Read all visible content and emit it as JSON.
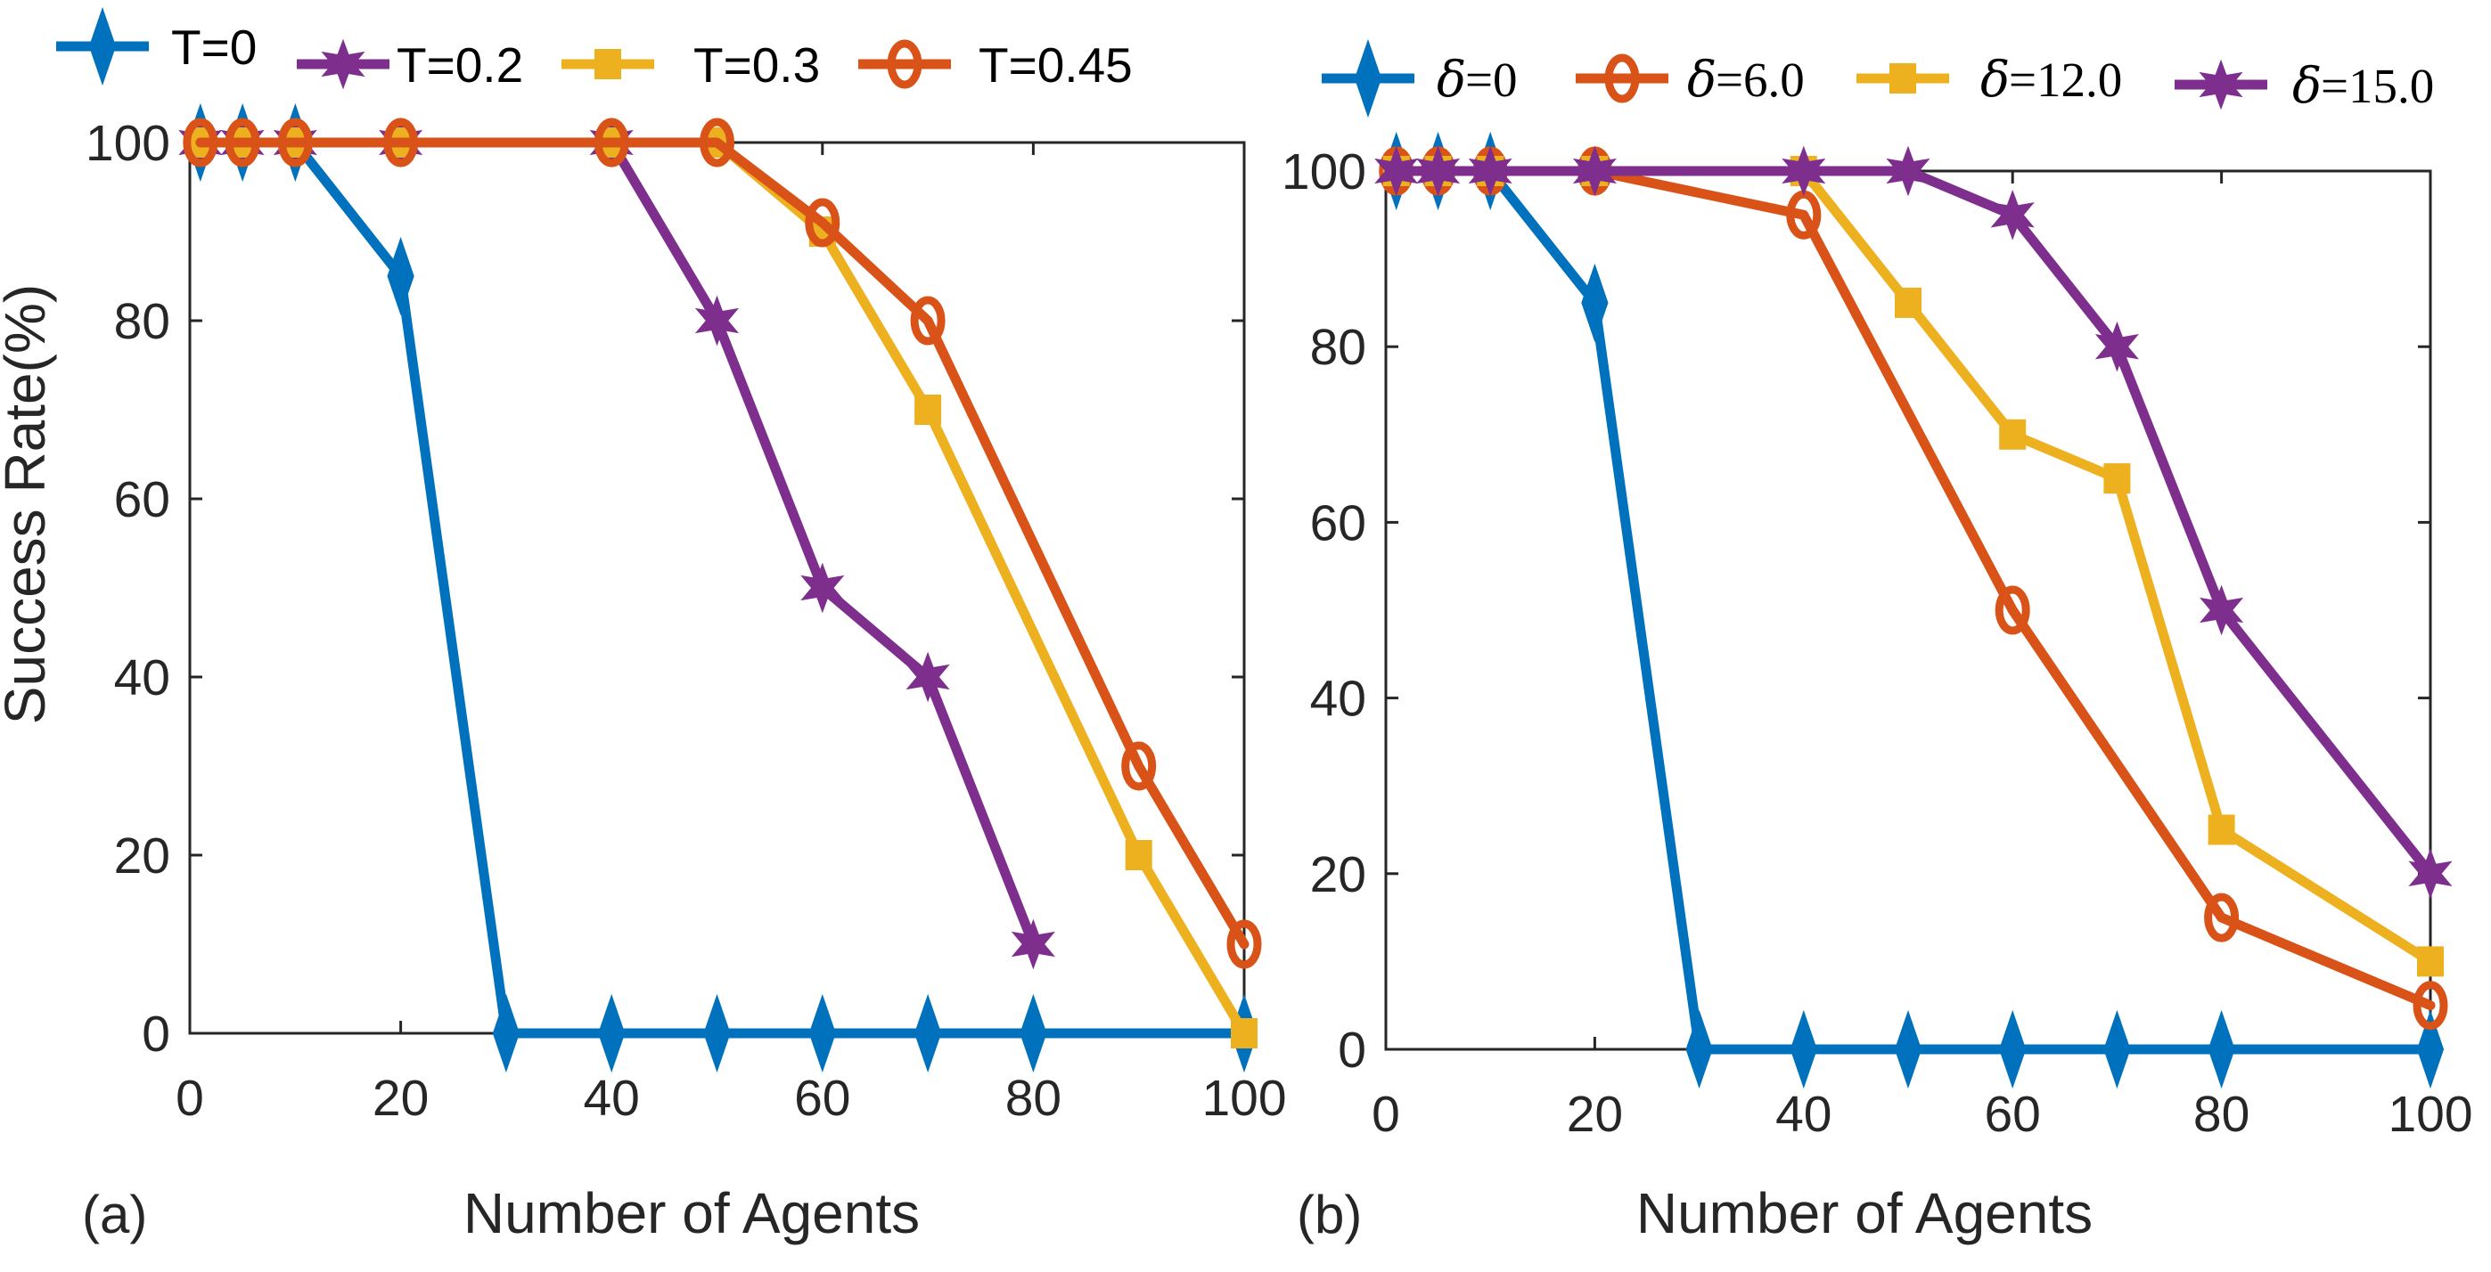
{
  "chart_data": [
    {
      "panel_label": "(a)",
      "type": "line",
      "xlabel": "Number of Agents",
      "ylabel": "Success Rate(%)",
      "xlim": [
        0,
        100
      ],
      "ylim": [
        0,
        100
      ],
      "xticks": [
        "0",
        "20",
        "40",
        "60",
        "80",
        "100"
      ],
      "yticks": [
        "0",
        "20",
        "40",
        "60",
        "80",
        "100"
      ],
      "series": [
        {
          "name": "T=0",
          "color": "#0072BD",
          "marker": "diamond",
          "x": [
            1,
            5,
            10,
            20,
            30,
            40,
            50,
            60,
            70,
            80,
            100
          ],
          "y": [
            100,
            100,
            100,
            85,
            0,
            0,
            0,
            0,
            0,
            0,
            0
          ]
        },
        {
          "name": "T=0.2",
          "color": "#7E2F8E",
          "marker": "star",
          "x": [
            1,
            5,
            10,
            20,
            40,
            50,
            60,
            70,
            80
          ],
          "y": [
            100,
            100,
            100,
            100,
            100,
            80,
            50,
            40,
            10
          ]
        },
        {
          "name": "T=0.3",
          "color": "#EDB120",
          "marker": "square",
          "x": [
            1,
            5,
            10,
            20,
            40,
            50,
            60,
            70,
            90,
            100
          ],
          "y": [
            100,
            100,
            100,
            100,
            100,
            100,
            90,
            70,
            20,
            0
          ]
        },
        {
          "name": "T=0.45",
          "color": "#D95319",
          "marker": "circle",
          "x": [
            1,
            5,
            10,
            20,
            40,
            50,
            60,
            70,
            90,
            100
          ],
          "y": [
            100,
            100,
            100,
            100,
            100,
            100,
            91,
            80,
            30,
            10
          ]
        }
      ]
    },
    {
      "panel_label": "(b)",
      "type": "line",
      "xlabel": "Number of Agents",
      "ylabel": "",
      "xlim": [
        0,
        100
      ],
      "ylim": [
        0,
        100
      ],
      "xticks": [
        "0",
        "20",
        "40",
        "60",
        "80",
        "100"
      ],
      "yticks": [
        "0",
        "20",
        "40",
        "60",
        "80",
        "100"
      ],
      "series": [
        {
          "name": "δ=0",
          "symbol": "δ",
          "value_text": "=0",
          "color": "#0072BD",
          "marker": "diamond",
          "x": [
            1,
            5,
            10,
            20,
            30,
            40,
            50,
            60,
            70,
            80,
            100
          ],
          "y": [
            100,
            100,
            100,
            85,
            0,
            0,
            0,
            0,
            0,
            0,
            0
          ]
        },
        {
          "name": "δ=6.0",
          "symbol": "δ",
          "value_text": "=6.0",
          "color": "#D95319",
          "marker": "circle",
          "x": [
            1,
            5,
            10,
            20,
            40,
            60,
            80,
            100
          ],
          "y": [
            100,
            100,
            100,
            100,
            95,
            50,
            15,
            5
          ]
        },
        {
          "name": "δ=12.0",
          "symbol": "δ",
          "value_text": "=12.0",
          "color": "#EDB120",
          "marker": "square",
          "x": [
            1,
            5,
            10,
            20,
            40,
            50,
            60,
            70,
            80,
            100
          ],
          "y": [
            100,
            100,
            100,
            100,
            100,
            85,
            70,
            65,
            25,
            10
          ]
        },
        {
          "name": "δ=15.0",
          "symbol": "δ",
          "value_text": "=15.0",
          "color": "#7E2F8E",
          "marker": "star",
          "x": [
            1,
            5,
            10,
            20,
            40,
            50,
            60,
            70,
            80,
            100
          ],
          "y": [
            100,
            100,
            100,
            100,
            100,
            100,
            95,
            80,
            50,
            20
          ]
        }
      ]
    }
  ]
}
